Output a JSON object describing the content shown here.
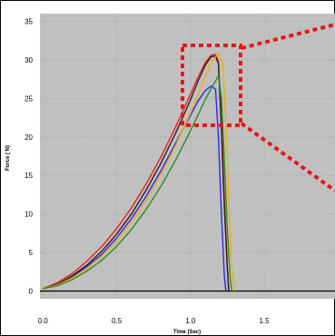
{
  "chart_data": {
    "type": "line",
    "xlabel": "Time (Sec)",
    "ylabel": "Force ( N)",
    "xlim": [
      -0.02,
      1.98
    ],
    "ylim": [
      -1,
      36
    ],
    "x_ticks": [
      "0.0",
      "0.5",
      "1.0",
      "1.5"
    ],
    "x_tick_values": [
      0.0,
      0.5,
      1.0,
      1.5
    ],
    "y_ticks": [
      "0",
      "5",
      "10",
      "15",
      "20",
      "25",
      "30",
      "35"
    ],
    "y_tick_values": [
      0,
      5,
      10,
      15,
      20,
      25,
      30,
      35
    ],
    "grid": true,
    "baseline": 0,
    "colors": {
      "plot_background": "#c0c0c0",
      "grid": "#9a9a9a",
      "highlight": "#e8141a"
    },
    "series": [
      {
        "color": "#2a2ae8",
        "x": [
          0.0,
          0.1,
          0.2,
          0.3,
          0.4,
          0.5,
          0.6,
          0.7,
          0.8,
          0.9,
          1.0,
          1.05,
          1.1,
          1.14,
          1.17,
          1.19,
          1.21,
          1.23,
          1.24
        ],
        "y": [
          0.3,
          0.9,
          1.9,
          3.2,
          4.8,
          6.9,
          9.4,
          12.3,
          15.6,
          19.2,
          22.8,
          24.6,
          26.0,
          26.6,
          26.2,
          20.0,
          10.0,
          2.0,
          0
        ]
      },
      {
        "color": "#e82020",
        "x": [
          0.0,
          0.1,
          0.2,
          0.3,
          0.4,
          0.5,
          0.6,
          0.7,
          0.8,
          0.9,
          1.0,
          1.05,
          1.1,
          1.14,
          1.17,
          1.19,
          1.21,
          1.23,
          1.25,
          1.26
        ],
        "y": [
          0.3,
          1.1,
          2.3,
          3.9,
          5.8,
          8.1,
          10.8,
          13.9,
          17.4,
          21.3,
          25.5,
          27.7,
          29.6,
          30.6,
          30.7,
          29.8,
          22.0,
          12.0,
          3.0,
          0
        ]
      },
      {
        "color": "#3a1a1a",
        "x": [
          0.0,
          0.1,
          0.2,
          0.3,
          0.4,
          0.5,
          0.6,
          0.7,
          0.8,
          0.9,
          1.0,
          1.05,
          1.1,
          1.14,
          1.17,
          1.19,
          1.21,
          1.23,
          1.25,
          1.26
        ],
        "y": [
          0.3,
          0.9,
          2.0,
          3.4,
          5.2,
          7.4,
          10.0,
          13.1,
          16.6,
          20.5,
          24.8,
          27.2,
          29.3,
          30.4,
          30.5,
          29.5,
          21.0,
          11.0,
          3.0,
          0
        ]
      },
      {
        "color": "#e8b010",
        "x": [
          0.0,
          0.1,
          0.2,
          0.3,
          0.4,
          0.5,
          0.6,
          0.7,
          0.8,
          0.9,
          1.0,
          1.05,
          1.1,
          1.15,
          1.19,
          1.22,
          1.24,
          1.26,
          1.28,
          1.3
        ],
        "y": [
          0.3,
          0.8,
          1.7,
          2.9,
          4.5,
          6.5,
          8.9,
          11.8,
          15.1,
          18.9,
          23.1,
          25.4,
          27.8,
          30.0,
          30.8,
          29.5,
          22.0,
          12.0,
          3.0,
          0
        ]
      },
      {
        "color": "#2e8a1e",
        "x": [
          0.0,
          0.1,
          0.2,
          0.3,
          0.4,
          0.5,
          0.6,
          0.7,
          0.8,
          0.9,
          1.0,
          1.05,
          1.1,
          1.15,
          1.19,
          1.21,
          1.23,
          1.25,
          1.27,
          1.28
        ],
        "y": [
          0.3,
          0.7,
          1.5,
          2.6,
          4.0,
          5.8,
          8.0,
          10.6,
          13.6,
          17.0,
          20.8,
          22.8,
          24.8,
          26.6,
          27.9,
          25.0,
          17.0,
          8.0,
          1.5,
          0
        ]
      }
    ]
  }
}
